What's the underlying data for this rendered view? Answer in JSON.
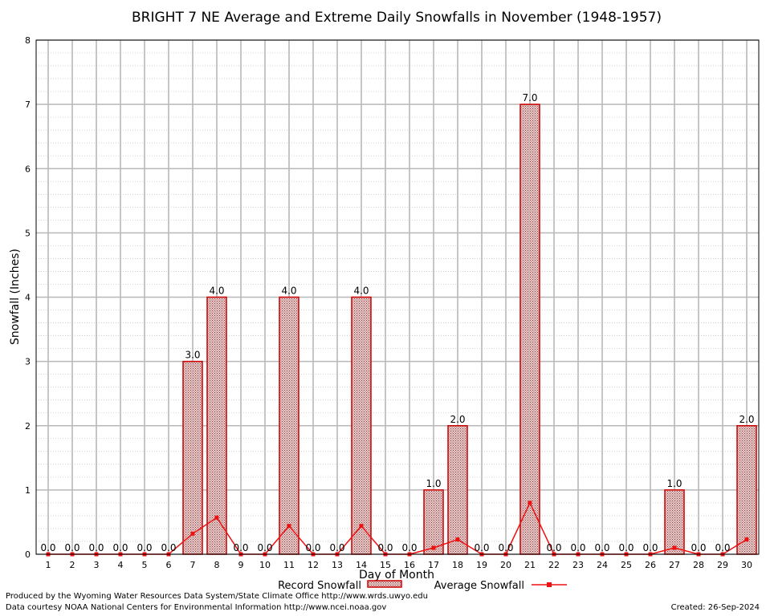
{
  "chart_data": {
    "type": "bar",
    "title": "BRIGHT 7 NE Average and Extreme Daily Snowfalls in November (1948-1957)",
    "xlabel": "Day of Month",
    "ylabel": "Snowfall (Inches)",
    "ylim": [
      0,
      8
    ],
    "yticks": [
      "0",
      "1",
      "2",
      "3",
      "4",
      "5",
      "6",
      "7",
      "8"
    ],
    "categories": [
      "1",
      "2",
      "3",
      "4",
      "5",
      "6",
      "7",
      "8",
      "9",
      "10",
      "11",
      "12",
      "13",
      "14",
      "15",
      "16",
      "17",
      "18",
      "19",
      "20",
      "21",
      "22",
      "23",
      "24",
      "25",
      "26",
      "27",
      "28",
      "29",
      "30"
    ],
    "series": [
      {
        "name": "Record Snowfall",
        "kind": "bar",
        "values": [
          0,
          0,
          0,
          0,
          0,
          0,
          3,
          4,
          0,
          0,
          4,
          0,
          0,
          4,
          0,
          0,
          1,
          2,
          0,
          0,
          7,
          0,
          0,
          0,
          0,
          0,
          1,
          0,
          0,
          2
        ],
        "labels": [
          "0.0",
          "0.0",
          "0.0",
          "0.0",
          "0.0",
          "0.0",
          "3.0",
          "4.0",
          "0.0",
          "0.0",
          "4.0",
          "0.0",
          "0.0",
          "4.0",
          "0.0",
          "0.0",
          "1.0",
          "2.0",
          "0.0",
          "0.0",
          "7.0",
          "0.0",
          "0.0",
          "0.0",
          "0.0",
          "0.0",
          "1.0",
          "0.0",
          "0.0",
          "2.0"
        ]
      },
      {
        "name": "Average Snowfall",
        "kind": "line",
        "values": [
          0,
          0,
          0,
          0,
          0,
          0,
          0.32,
          0.57,
          0,
          0,
          0.44,
          0,
          0,
          0.44,
          0,
          0,
          0.1,
          0.23,
          0,
          0,
          0.8,
          0,
          0,
          0,
          0,
          0,
          0.1,
          0,
          0,
          0.23
        ]
      }
    ],
    "grid": true,
    "legend": "bottom",
    "colors": {
      "bar_edge": "#cc0000",
      "bar_fill": "#d9b3b3",
      "line": "#ee1111",
      "grid": "#b0b0b0"
    }
  },
  "footer": {
    "produced_by": "Produced by the Wyoming Water Resources Data System/State Climate Office http://www.wrds.uwyo.edu",
    "courtesy": "Data courtesy NOAA National Centers for Environmental Information http://www.ncei.noaa.gov",
    "created": "Created:  26-Sep-2024"
  }
}
